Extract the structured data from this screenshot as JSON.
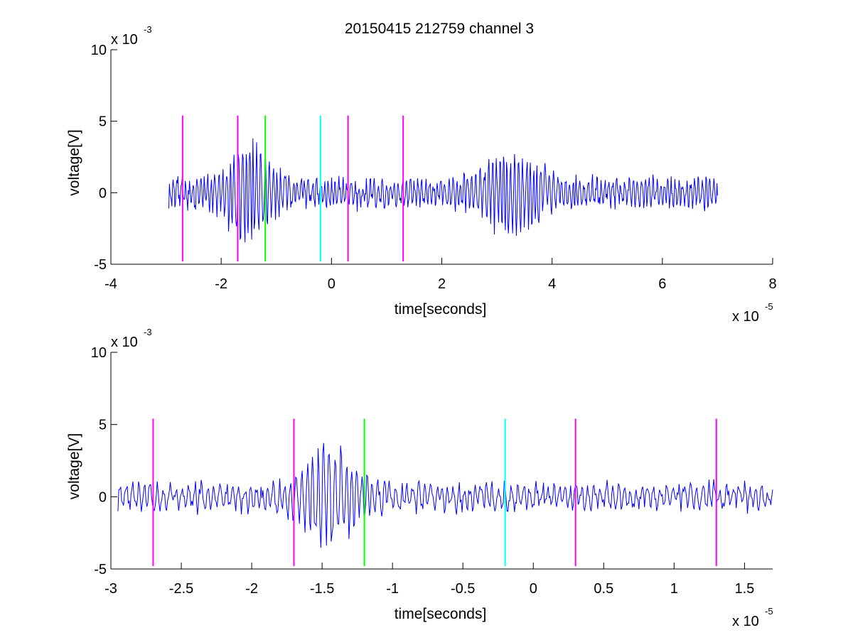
{
  "figure": {
    "title": "20150415 212759 channel 3"
  },
  "chart_data": [
    {
      "type": "line",
      "title": "20150415 212759 channel 3",
      "xlabel": "time[seconds]",
      "ylabel": "voltage[V]",
      "x_exponent_label": "x 10",
      "x_exponent": "-5",
      "y_exponent_label": "x 10",
      "y_exponent": "-3",
      "xlim": [
        -4,
        8
      ],
      "ylim": [
        -5,
        10
      ],
      "xticks": [
        "-4",
        "-2",
        "0",
        "2",
        "4",
        "6",
        "8"
      ],
      "xtick_values": [
        -4,
        -2,
        0,
        2,
        4,
        6,
        8
      ],
      "yticks": [
        "-5",
        "0",
        "5",
        "10"
      ],
      "ytick_values": [
        -5,
        0,
        5,
        10
      ],
      "signal": {
        "color": "#0000ff",
        "x_start": -2.95,
        "x_end": 7.0,
        "y_first": -1.1,
        "y_last": -0.2,
        "y_min": -4.3,
        "y_max": 3.8,
        "peaks": [
          {
            "x": -1.5,
            "amp": 3.2,
            "width": 0.45
          },
          {
            "x": 3.3,
            "amp": 2.6,
            "width": 0.55
          }
        ],
        "base_amp": 1.0
      },
      "markers": [
        {
          "x": -2.7,
          "color": "#ff00ff",
          "y_range": [
            -4.8,
            5.4
          ]
        },
        {
          "x": -1.7,
          "color": "#ff00ff",
          "y_range": [
            -4.8,
            5.4
          ]
        },
        {
          "x": -1.2,
          "color": "#00ff00",
          "y_range": [
            -4.8,
            5.4
          ]
        },
        {
          "x": -0.2,
          "color": "#00ffff",
          "y_range": [
            -4.8,
            5.4
          ]
        },
        {
          "x": 0.3,
          "color": "#ff00ff",
          "y_range": [
            -4.8,
            5.4
          ]
        },
        {
          "x": 1.3,
          "color": "#ff00ff",
          "y_range": [
            -4.8,
            5.4
          ]
        }
      ],
      "box": false,
      "grid": false
    },
    {
      "type": "line",
      "xlabel": "time[seconds]",
      "ylabel": "voltage[V]",
      "x_exponent_label": "x 10",
      "x_exponent": "-5",
      "y_exponent_label": "x 10",
      "y_exponent": "-3",
      "xlim": [
        -3.0,
        1.7
      ],
      "ylim": [
        -5,
        10
      ],
      "xticks": [
        "-3",
        "-2.5",
        "-2",
        "-1.5",
        "-1",
        "-0.5",
        "0",
        "0.5",
        "1",
        "1.5"
      ],
      "xtick_values": [
        -3,
        -2.5,
        -2,
        -1.5,
        -1,
        -0.5,
        0,
        0.5,
        1,
        1.5
      ],
      "yticks": [
        "-5",
        "0",
        "5",
        "10"
      ],
      "ytick_values": [
        -5,
        0,
        5,
        10
      ],
      "signal": {
        "color": "#0000ff",
        "x_start": -2.95,
        "x_end": 1.7,
        "y_first": -1.0,
        "y_last": 0.5,
        "y_min": -4.3,
        "y_max": 4.9,
        "peaks": [
          {
            "x": -1.45,
            "amp": 3.3,
            "width": 0.22
          }
        ],
        "base_amp": 0.9
      },
      "markers": [
        {
          "x": -2.7,
          "color": "#ff00ff",
          "y_range": [
            -4.8,
            5.4
          ]
        },
        {
          "x": -1.7,
          "color": "#ff00ff",
          "y_range": [
            -4.8,
            5.4
          ]
        },
        {
          "x": -1.2,
          "color": "#00ff00",
          "y_range": [
            -4.8,
            5.4
          ]
        },
        {
          "x": -0.2,
          "color": "#00ffff",
          "y_range": [
            -4.8,
            5.4
          ]
        },
        {
          "x": 0.3,
          "color": "#ff00ff",
          "y_range": [
            -4.8,
            5.4
          ]
        },
        {
          "x": 1.3,
          "color": "#ff00ff",
          "y_range": [
            -4.8,
            5.4
          ]
        }
      ],
      "box": false,
      "grid": false
    }
  ]
}
